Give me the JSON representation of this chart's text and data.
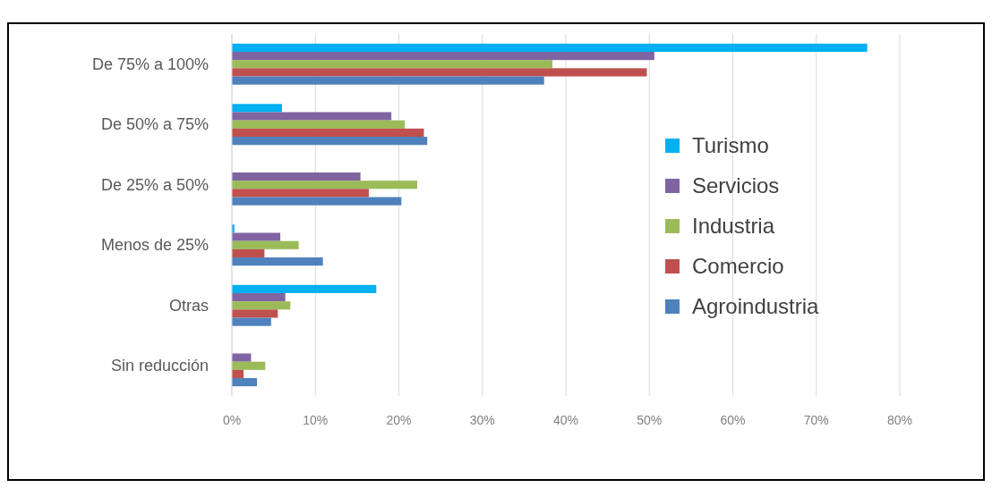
{
  "chart_data": {
    "type": "bar",
    "orientation": "horizontal",
    "categories": [
      "De 75% a 100%",
      "De 50% a 75%",
      "De 25% a 50%",
      "Menos de 25%",
      "Otras",
      "Sin reducción"
    ],
    "series": [
      {
        "name": "Turismo",
        "color": "#00b0f0",
        "values": [
          76.1,
          6.0,
          0,
          0.3,
          17.3,
          0
        ]
      },
      {
        "name": "Servicios",
        "color": "#8064a2",
        "values": [
          50.6,
          19.1,
          15.4,
          5.8,
          6.4,
          2.3
        ]
      },
      {
        "name": "Industria",
        "color": "#9bbb59",
        "values": [
          38.4,
          20.7,
          22.2,
          8.0,
          7.0,
          4.0
        ]
      },
      {
        "name": "Comercio",
        "color": "#c0504d",
        "values": [
          49.7,
          23.0,
          16.4,
          3.9,
          5.5,
          1.4
        ]
      },
      {
        "name": "Agroindustria",
        "color": "#4f81bd",
        "values": [
          37.4,
          23.4,
          20.3,
          10.9,
          4.7,
          3.0
        ]
      }
    ],
    "xlim": [
      0,
      80
    ],
    "xticks": [
      {
        "value": 0,
        "label": "0%"
      },
      {
        "value": 10,
        "label": "10%"
      },
      {
        "value": 20,
        "label": "20%"
      },
      {
        "value": 30,
        "label": "30%"
      },
      {
        "value": 40,
        "label": "40%"
      },
      {
        "value": 50,
        "label": "50%"
      },
      {
        "value": 60,
        "label": "60%"
      },
      {
        "value": 70,
        "label": "70%"
      },
      {
        "value": 80,
        "label": "80%"
      }
    ],
    "grid": "x",
    "legend": "right"
  }
}
